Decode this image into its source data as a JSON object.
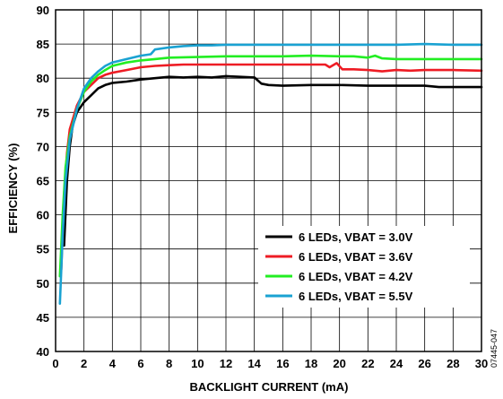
{
  "chart_data": {
    "type": "line",
    "xlabel": "BACKLIGHT CURRENT (mA)",
    "ylabel": "EFFICIENCY (%)",
    "xlim": [
      0,
      30
    ],
    "ylim": [
      40,
      90
    ],
    "xticks": [
      0,
      2,
      4,
      6,
      8,
      10,
      12,
      14,
      16,
      18,
      20,
      22,
      24,
      26,
      28,
      30
    ],
    "yticks": [
      40,
      45,
      50,
      55,
      60,
      65,
      70,
      75,
      80,
      85,
      90
    ],
    "grid": true,
    "legend_position": "bottom-right",
    "figure_id": "07445-047",
    "series": [
      {
        "name": "6 LEDs, VBAT = 3.0V",
        "color": "#000000",
        "points": [
          [
            0.6,
            55.5
          ],
          [
            0.8,
            65
          ],
          [
            1.0,
            70
          ],
          [
            1.2,
            73
          ],
          [
            1.5,
            75
          ],
          [
            2.0,
            76.5
          ],
          [
            2.5,
            77.5
          ],
          [
            3.0,
            78.5
          ],
          [
            3.5,
            79.0
          ],
          [
            4.0,
            79.3
          ],
          [
            5.0,
            79.5
          ],
          [
            6.0,
            79.8
          ],
          [
            7.0,
            80.0
          ],
          [
            8.0,
            80.2
          ],
          [
            9.0,
            80.1
          ],
          [
            10.0,
            80.2
          ],
          [
            11.0,
            80.1
          ],
          [
            12.0,
            80.3
          ],
          [
            13.0,
            80.2
          ],
          [
            14.0,
            80.1
          ],
          [
            14.5,
            79.2
          ],
          [
            15.0,
            79.0
          ],
          [
            16.0,
            78.9
          ],
          [
            18.0,
            79.0
          ],
          [
            20.0,
            79.0
          ],
          [
            22.0,
            78.9
          ],
          [
            24.0,
            78.9
          ],
          [
            26.0,
            78.9
          ],
          [
            27.0,
            78.7
          ],
          [
            28.0,
            78.7
          ],
          [
            30.0,
            78.7
          ]
        ]
      },
      {
        "name": "6 LEDs, VBAT = 3.6V",
        "color": "#ee1c24",
        "points": [
          [
            0.4,
            52
          ],
          [
            0.6,
            63
          ],
          [
            0.8,
            69
          ],
          [
            1.0,
            72.5
          ],
          [
            1.5,
            76
          ],
          [
            2.0,
            78
          ],
          [
            2.5,
            79
          ],
          [
            3.0,
            80
          ],
          [
            3.5,
            80.5
          ],
          [
            4.0,
            80.8
          ],
          [
            5.0,
            81.2
          ],
          [
            6.0,
            81.6
          ],
          [
            7.0,
            81.8
          ],
          [
            8.0,
            81.9
          ],
          [
            9.0,
            82.0
          ],
          [
            10.0,
            82.0
          ],
          [
            12.0,
            82.0
          ],
          [
            14.0,
            82.0
          ],
          [
            16.0,
            82.0
          ],
          [
            18.0,
            82.0
          ],
          [
            19.0,
            82.0
          ],
          [
            19.3,
            81.6
          ],
          [
            19.8,
            82.2
          ],
          [
            20.2,
            81.3
          ],
          [
            21.0,
            81.3
          ],
          [
            22.0,
            81.2
          ],
          [
            23.0,
            81.0
          ],
          [
            24.0,
            81.2
          ],
          [
            25.0,
            81.1
          ],
          [
            26.0,
            81.2
          ],
          [
            28.0,
            81.2
          ],
          [
            30.0,
            81.1
          ]
        ]
      },
      {
        "name": "6 LEDs, VBAT = 4.2V",
        "color": "#22ee22",
        "points": [
          [
            0.3,
            51
          ],
          [
            0.5,
            60
          ],
          [
            0.7,
            67
          ],
          [
            1.0,
            71.5
          ],
          [
            1.5,
            75.5
          ],
          [
            2.0,
            78
          ],
          [
            2.5,
            79.5
          ],
          [
            3.0,
            80.5
          ],
          [
            3.5,
            81.2
          ],
          [
            4.0,
            81.8
          ],
          [
            5.0,
            82.3
          ],
          [
            6.0,
            82.6
          ],
          [
            7.0,
            82.8
          ],
          [
            8.0,
            83.0
          ],
          [
            10.0,
            83.1
          ],
          [
            12.0,
            83.2
          ],
          [
            14.0,
            83.2
          ],
          [
            16.0,
            83.2
          ],
          [
            18.0,
            83.3
          ],
          [
            20.0,
            83.2
          ],
          [
            21.0,
            83.2
          ],
          [
            22.0,
            83.0
          ],
          [
            22.5,
            83.3
          ],
          [
            23.0,
            82.9
          ],
          [
            24.0,
            82.8
          ],
          [
            26.0,
            82.8
          ],
          [
            28.0,
            82.8
          ],
          [
            30.0,
            82.8
          ]
        ]
      },
      {
        "name": "6 LEDs, VBAT = 5.5V",
        "color": "#1aa2d2",
        "points": [
          [
            0.3,
            47
          ],
          [
            0.5,
            57
          ],
          [
            0.7,
            65
          ],
          [
            1.0,
            71
          ],
          [
            1.5,
            75.5
          ],
          [
            2.0,
            78.5
          ],
          [
            2.5,
            80
          ],
          [
            3.0,
            81
          ],
          [
            3.5,
            81.8
          ],
          [
            4.0,
            82.3
          ],
          [
            5.0,
            82.8
          ],
          [
            6.0,
            83.3
          ],
          [
            6.7,
            83.5
          ],
          [
            7.0,
            84.2
          ],
          [
            8.0,
            84.5
          ],
          [
            9.0,
            84.7
          ],
          [
            10.0,
            84.8
          ],
          [
            11.0,
            84.8
          ],
          [
            12.0,
            84.9
          ],
          [
            13.0,
            84.9
          ],
          [
            14.0,
            84.9
          ],
          [
            16.0,
            84.9
          ],
          [
            18.0,
            84.9
          ],
          [
            20.0,
            84.9
          ],
          [
            22.0,
            84.9
          ],
          [
            24.0,
            84.9
          ],
          [
            26.0,
            85.0
          ],
          [
            28.0,
            84.9
          ],
          [
            30.0,
            84.9
          ]
        ]
      }
    ]
  }
}
